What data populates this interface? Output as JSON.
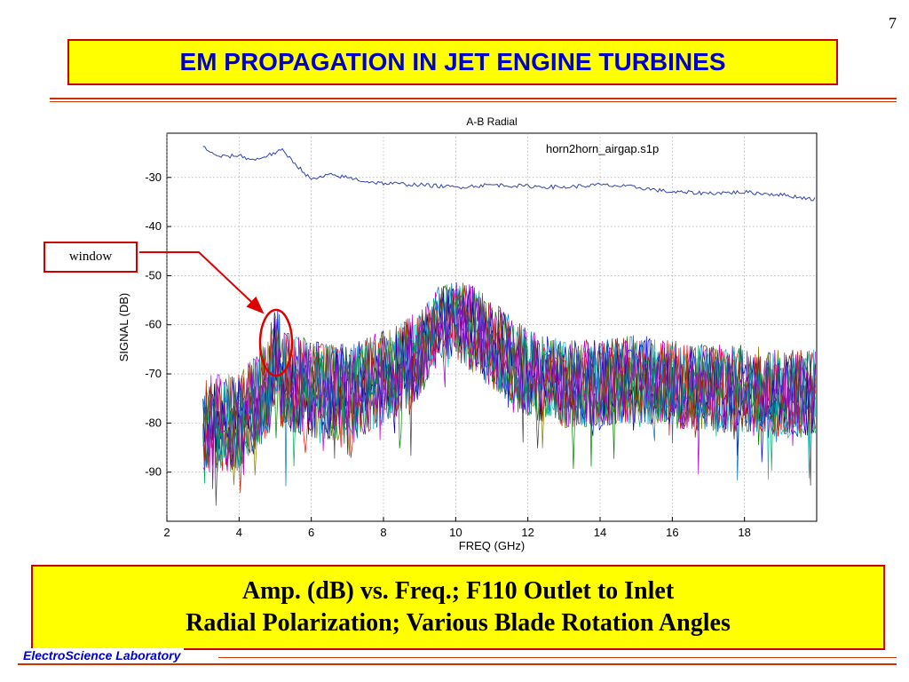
{
  "slide": {
    "page_number": "7",
    "title": "EM PROPAGATION IN JET ENGINE TURBINES",
    "caption_line1": "Amp. (dB) vs. Freq.; F110 Outlet to Inlet",
    "caption_line2": "Radial Polarization; Various Blade Rotation Angles",
    "footer": "ElectroScience Laboratory",
    "annotation": "window"
  },
  "colors": {
    "title_bg": "#ffff00",
    "title_text": "#0000cc",
    "border_red": "#cc0000",
    "rule": "#cc3300",
    "reference_line": "#3344aa"
  },
  "chart_data": {
    "type": "line",
    "title": "A-B Radial",
    "annotation": "horn2horn_airgap.s1p",
    "xlabel": "FREQ (GHz)",
    "ylabel": "SIGNAL (DB)",
    "xlim": [
      2,
      20
    ],
    "ylim": [
      -100,
      -21
    ],
    "x_ticks": [
      2,
      4,
      6,
      8,
      10,
      12,
      14,
      16,
      18
    ],
    "y_ticks": [
      -30,
      -40,
      -50,
      -60,
      -70,
      -80,
      -90
    ],
    "grid": true,
    "reference_series": {
      "x": [
        3.0,
        3.3,
        3.6,
        4.0,
        4.4,
        4.8,
        5.2,
        5.6,
        6.0,
        6.5,
        7.0,
        7.5,
        8.0,
        9.0,
        10.0,
        11.0,
        12.0,
        13.0,
        14.0,
        15.0,
        16.0,
        17.0,
        18.0,
        19.0,
        20.0
      ],
      "values": [
        -23.5,
        -25.5,
        -25.8,
        -25.5,
        -26.5,
        -25.5,
        -24.5,
        -27.5,
        -30.5,
        -29.5,
        -30.0,
        -30.8,
        -31.2,
        -31.5,
        -32.0,
        -31.5,
        -31.8,
        -32.0,
        -31.5,
        -32.0,
        -33.0,
        -33.2,
        -33.0,
        -33.5,
        -34.5
      ]
    },
    "noise_envelope": {
      "note_series_count": 12,
      "x": [
        3,
        4,
        5,
        6,
        7,
        8,
        9,
        9.5,
        10,
        10.5,
        11,
        12,
        13,
        14,
        15,
        16,
        17,
        18,
        19,
        20
      ],
      "mean": [
        -80,
        -80,
        -71,
        -73,
        -74,
        -71,
        -66,
        -60,
        -59,
        -61,
        -64,
        -70,
        -72,
        -72,
        -71,
        -72,
        -73,
        -73,
        -74,
        -74
      ],
      "spread": [
        10,
        10,
        10,
        10,
        10,
        10,
        9,
        8,
        8,
        9,
        9,
        9,
        9,
        9,
        9,
        9,
        9,
        9,
        9,
        9
      ]
    },
    "series_colors": [
      "#0000ff",
      "#008000",
      "#ff0000",
      "#00bfbf",
      "#bf00bf",
      "#7f7f00",
      "#404040",
      "#0000aa",
      "#00aa55",
      "#aa2200",
      "#0077bb",
      "#9900cc"
    ]
  }
}
